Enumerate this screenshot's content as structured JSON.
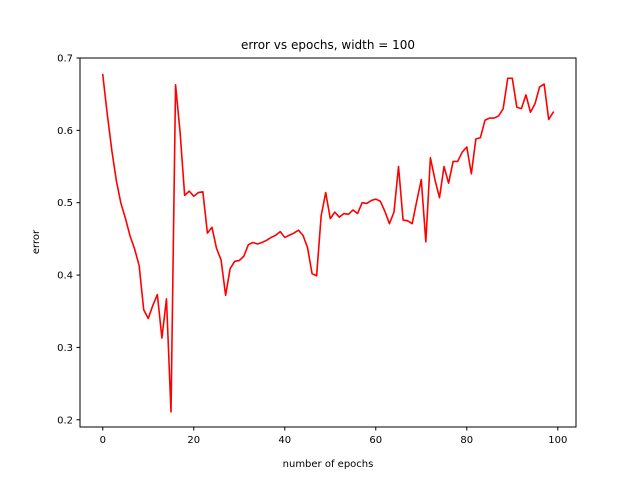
{
  "chart_data": {
    "type": "line",
    "title": "error vs epochs, width = 100",
    "xlabel": "number of epochs",
    "ylabel": "error",
    "xlim": [
      -5,
      104
    ],
    "ylim": [
      0.19,
      0.7
    ],
    "xticks": [
      0,
      20,
      40,
      60,
      80,
      100
    ],
    "xtick_labels": [
      "0",
      "20",
      "40",
      "60",
      "80",
      "100"
    ],
    "yticks": [
      0.2,
      0.3,
      0.4,
      0.5,
      0.6,
      0.7
    ],
    "ytick_labels": [
      "0.2",
      "0.3",
      "0.4",
      "0.5",
      "0.6",
      "0.7"
    ],
    "grid": false,
    "series": [
      {
        "name": "error",
        "color": "#ff0000",
        "x": [
          0,
          1,
          2,
          3,
          4,
          5,
          6,
          7,
          8,
          9,
          10,
          11,
          12,
          13,
          14,
          15,
          16,
          17,
          18,
          19,
          20,
          21,
          22,
          23,
          24,
          25,
          26,
          27,
          28,
          29,
          30,
          31,
          32,
          33,
          34,
          35,
          36,
          37,
          38,
          39,
          40,
          41,
          42,
          43,
          44,
          45,
          46,
          47,
          48,
          49,
          50,
          51,
          52,
          53,
          54,
          55,
          56,
          57,
          58,
          59,
          60,
          61,
          62,
          63,
          64,
          65,
          66,
          67,
          68,
          69,
          70,
          71,
          72,
          73,
          74,
          75,
          76,
          77,
          78,
          79,
          80,
          81,
          82,
          83,
          84,
          85,
          86,
          87,
          88,
          89,
          90,
          91,
          92,
          93,
          94,
          95,
          96,
          97,
          98,
          99
        ],
        "values": [
          0.677,
          0.622,
          0.572,
          0.53,
          0.499,
          0.478,
          0.454,
          0.436,
          0.413,
          0.352,
          0.34,
          0.358,
          0.373,
          0.313,
          0.367,
          0.211,
          0.663,
          0.597,
          0.51,
          0.516,
          0.509,
          0.514,
          0.515,
          0.458,
          0.466,
          0.437,
          0.421,
          0.372,
          0.409,
          0.419,
          0.42,
          0.426,
          0.442,
          0.445,
          0.443,
          0.445,
          0.448,
          0.452,
          0.455,
          0.46,
          0.452,
          0.455,
          0.458,
          0.462,
          0.455,
          0.438,
          0.402,
          0.399,
          0.482,
          0.514,
          0.478,
          0.487,
          0.48,
          0.485,
          0.484,
          0.49,
          0.485,
          0.5,
          0.499,
          0.503,
          0.505,
          0.502,
          0.488,
          0.471,
          0.487,
          0.55,
          0.476,
          0.475,
          0.471,
          0.502,
          0.532,
          0.446,
          0.562,
          0.532,
          0.507,
          0.55,
          0.527,
          0.557,
          0.557,
          0.57,
          0.577,
          0.54,
          0.588,
          0.59,
          0.614,
          0.617,
          0.617,
          0.62,
          0.63,
          0.672,
          0.672,
          0.632,
          0.63,
          0.649,
          0.625,
          0.637,
          0.66,
          0.664,
          0.615,
          0.625
        ]
      }
    ]
  }
}
